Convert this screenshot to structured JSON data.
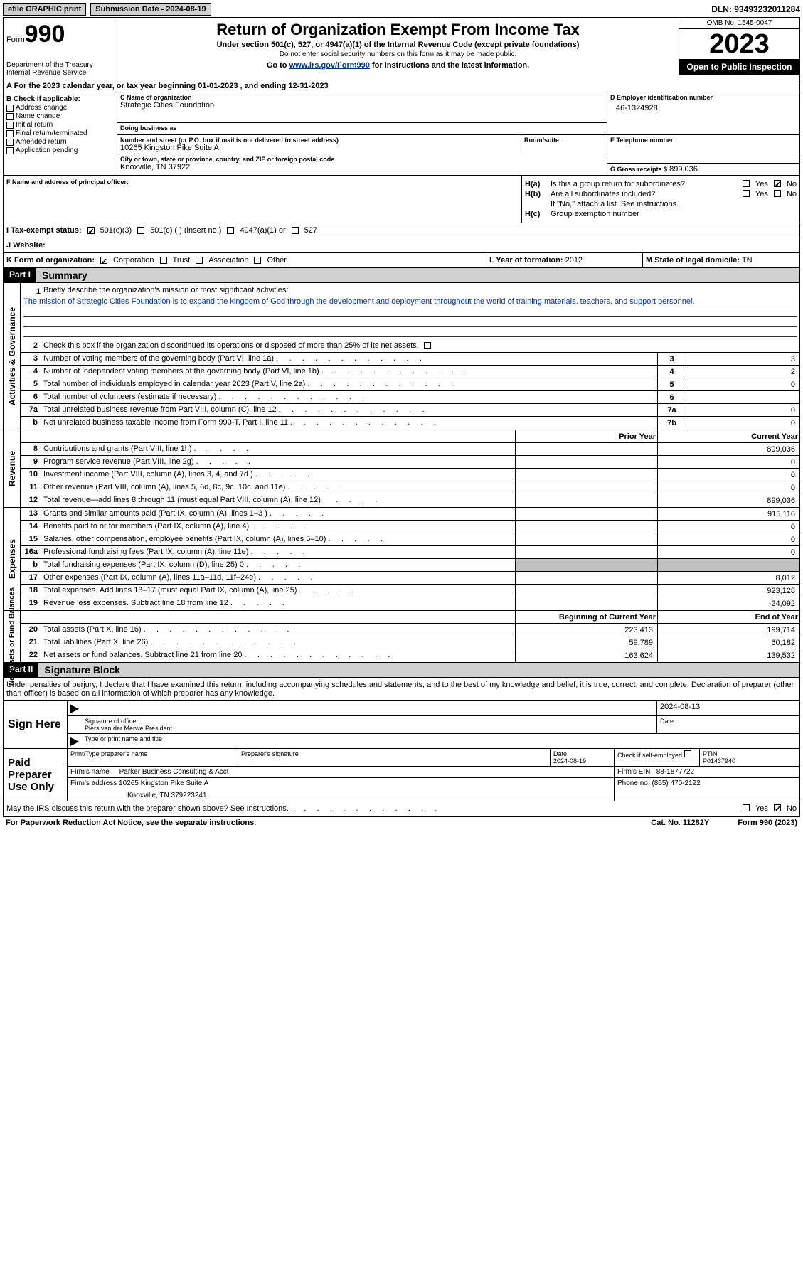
{
  "topbar": {
    "efile": "efile GRAPHIC print",
    "submission_label": "Submission Date - 2024-08-19",
    "dln": "DLN: 93493232011284"
  },
  "header": {
    "form_label": "Form",
    "form_number": "990",
    "title": "Return of Organization Exempt From Income Tax",
    "subtitle": "Under section 501(c), 527, or 4947(a)(1) of the Internal Revenue Code (except private foundations)",
    "note": "Do not enter social security numbers on this form as it may be made public.",
    "goto_prefix": "Go to ",
    "goto_link": "www.irs.gov/Form990",
    "goto_suffix": " for instructions and the latest information.",
    "dept": "Department of the Treasury\nInternal Revenue Service",
    "omb": "OMB No. 1545-0047",
    "year": "2023",
    "inspection": "Open to Public Inspection"
  },
  "row_a": "A  For the 2023 calendar year, or tax year beginning 01-01-2023   , and ending 12-31-2023",
  "section_b": {
    "b_header": "B Check if applicable:",
    "checks": [
      "Address change",
      "Name change",
      "Initial return",
      "Final return/terminated",
      "Amended return",
      "Application pending"
    ],
    "c_label": "C Name of organization",
    "c_name": "Strategic Cities Foundation",
    "dba_label": "Doing business as",
    "addr_label": "Number and street (or P.O. box if mail is not delivered to street address)",
    "addr": "10265 Kingston Pike Suite A",
    "room_label": "Room/suite",
    "city_label": "City or town, state or province, country, and ZIP or foreign postal code",
    "city": "Knoxville, TN  37922",
    "d_label": "D Employer identification number",
    "d_ein": "46-1324928",
    "e_label": "E Telephone number",
    "g_label": "G Gross receipts $",
    "g_val": "899,036"
  },
  "section_fh": {
    "f_label": "F  Name and address of principal officer:",
    "ha_label": "H(a)",
    "ha_text": "Is this a group return for subordinates?",
    "hb_label": "H(b)",
    "hb_text": "Are all subordinates included?",
    "hb_note": "If \"No,\" attach a list. See instructions.",
    "hc_label": "H(c)",
    "hc_text": "Group exemption number",
    "yes": "Yes",
    "no": "No"
  },
  "row_i": {
    "i_label": "I    Tax-exempt status:",
    "opts": [
      "501(c)(3)",
      "501(c) (  ) (insert no.)",
      "4947(a)(1) or",
      "527"
    ],
    "j_label": "J   Website:"
  },
  "row_klm": {
    "k_label": "K Form of organization:",
    "k_opts": [
      "Corporation",
      "Trust",
      "Association",
      "Other"
    ],
    "l_label": "L Year of formation:",
    "l_val": "2012",
    "m_label": "M State of legal domicile:",
    "m_val": "TN"
  },
  "part1": {
    "hdr": "Part I",
    "title": "Summary",
    "line1_label": "Briefly describe the organization's mission or most significant activities:",
    "line1_text": "The mission of Strategic Cities Foundation is to expand the kingdom of God through the development and deployment throughout the world of training materials, teachers, and support personnel.",
    "line2": "Check this box        if the organization discontinued its operations or disposed of more than 25% of its net assets.",
    "lines_gov": [
      {
        "n": "3",
        "t": "Number of voting members of the governing body (Part VI, line 1a)",
        "box": "3",
        "v": "3"
      },
      {
        "n": "4",
        "t": "Number of independent voting members of the governing body (Part VI, line 1b)",
        "box": "4",
        "v": "2"
      },
      {
        "n": "5",
        "t": "Total number of individuals employed in calendar year 2023 (Part V, line 2a)",
        "box": "5",
        "v": "0"
      },
      {
        "n": "6",
        "t": "Total number of volunteers (estimate if necessary)",
        "box": "6",
        "v": ""
      },
      {
        "n": "7a",
        "t": "Total unrelated business revenue from Part VIII, column (C), line 12",
        "box": "7a",
        "v": "0"
      },
      {
        "n": "b",
        "t": "Net unrelated business taxable income from Form 990-T, Part I, line 11",
        "box": "7b",
        "v": "0"
      }
    ],
    "prior_year": "Prior Year",
    "current_year": "Current Year",
    "lines_rev": [
      {
        "n": "8",
        "t": "Contributions and grants (Part VIII, line 1h)",
        "p": "",
        "c": "899,036"
      },
      {
        "n": "9",
        "t": "Program service revenue (Part VIII, line 2g)",
        "p": "",
        "c": "0"
      },
      {
        "n": "10",
        "t": "Investment income (Part VIII, column (A), lines 3, 4, and 7d )",
        "p": "",
        "c": "0"
      },
      {
        "n": "11",
        "t": "Other revenue (Part VIII, column (A), lines 5, 6d, 8c, 9c, 10c, and 11e)",
        "p": "",
        "c": "0"
      },
      {
        "n": "12",
        "t": "Total revenue—add lines 8 through 11 (must equal Part VIII, column (A), line 12)",
        "p": "",
        "c": "899,036"
      }
    ],
    "lines_exp": [
      {
        "n": "13",
        "t": "Grants and similar amounts paid (Part IX, column (A), lines 1–3 )",
        "p": "",
        "c": "915,116"
      },
      {
        "n": "14",
        "t": "Benefits paid to or for members (Part IX, column (A), line 4)",
        "p": "",
        "c": "0"
      },
      {
        "n": "15",
        "t": "Salaries, other compensation, employee benefits (Part IX, column (A), lines 5–10)",
        "p": "",
        "c": "0"
      },
      {
        "n": "16a",
        "t": "Professional fundraising fees (Part IX, column (A), line 11e)",
        "p": "",
        "c": "0"
      },
      {
        "n": "b",
        "t": "Total fundraising expenses (Part IX, column (D), line 25) 0",
        "p": "gray",
        "c": "gray"
      },
      {
        "n": "17",
        "t": "Other expenses (Part IX, column (A), lines 11a–11d, 11f–24e)",
        "p": "",
        "c": "8,012"
      },
      {
        "n": "18",
        "t": "Total expenses. Add lines 13–17 (must equal Part IX, column (A), line 25)",
        "p": "",
        "c": "923,128"
      },
      {
        "n": "19",
        "t": "Revenue less expenses. Subtract line 18 from line 12",
        "p": "",
        "c": "-24,092"
      }
    ],
    "begin_year": "Beginning of Current Year",
    "end_year": "End of Year",
    "lines_net": [
      {
        "n": "20",
        "t": "Total assets (Part X, line 16)",
        "p": "223,413",
        "c": "199,714"
      },
      {
        "n": "21",
        "t": "Total liabilities (Part X, line 26)",
        "p": "59,789",
        "c": "60,182"
      },
      {
        "n": "22",
        "t": "Net assets or fund balances. Subtract line 21 from line 20",
        "p": "163,624",
        "c": "139,532"
      }
    ]
  },
  "part2": {
    "hdr": "Part II",
    "title": "Signature Block",
    "declaration": "Under penalties of perjury, I declare that I have examined this return, including accompanying schedules and statements, and to the best of my knowledge and belief, it is true, correct, and complete. Declaration of preparer (other than officer) is based on all information of which preparer has any knowledge.",
    "sign_here": "Sign Here",
    "sig_date": "2024-08-13",
    "sig_officer": "Signature of officer",
    "officer_name": "Piers van der Merwe  President",
    "type_name": "Type or print name and title",
    "date_label": "Date",
    "paid_prep": "Paid Preparer Use Only",
    "prep_name_label": "Print/Type preparer's name",
    "prep_sig_label": "Preparer's signature",
    "prep_date": "2024-08-19",
    "check_if": "Check         if self-employed",
    "ptin_label": "PTIN",
    "ptin": "P01437940",
    "firm_name_label": "Firm's name",
    "firm_name": "Parker Business Consulting & Acct",
    "firm_ein_label": "Firm's EIN",
    "firm_ein": "88-1877722",
    "firm_addr_label": "Firm's address",
    "firm_addr": "10265 Kingston Pike Suite A",
    "firm_city": "Knoxville, TN  379223241",
    "phone_label": "Phone no.",
    "phone": "(865) 470-2122",
    "irs_discuss": "May the IRS discuss this return with the preparer shown above? See Instructions."
  },
  "footer": {
    "left": "For Paperwork Reduction Act Notice, see the separate instructions.",
    "mid": "Cat. No. 11282Y",
    "right": "Form 990 (2023)"
  },
  "side_labels": {
    "gov": "Activities & Governance",
    "rev": "Revenue",
    "exp": "Expenses",
    "net": "Net Assets or Fund Balances"
  }
}
